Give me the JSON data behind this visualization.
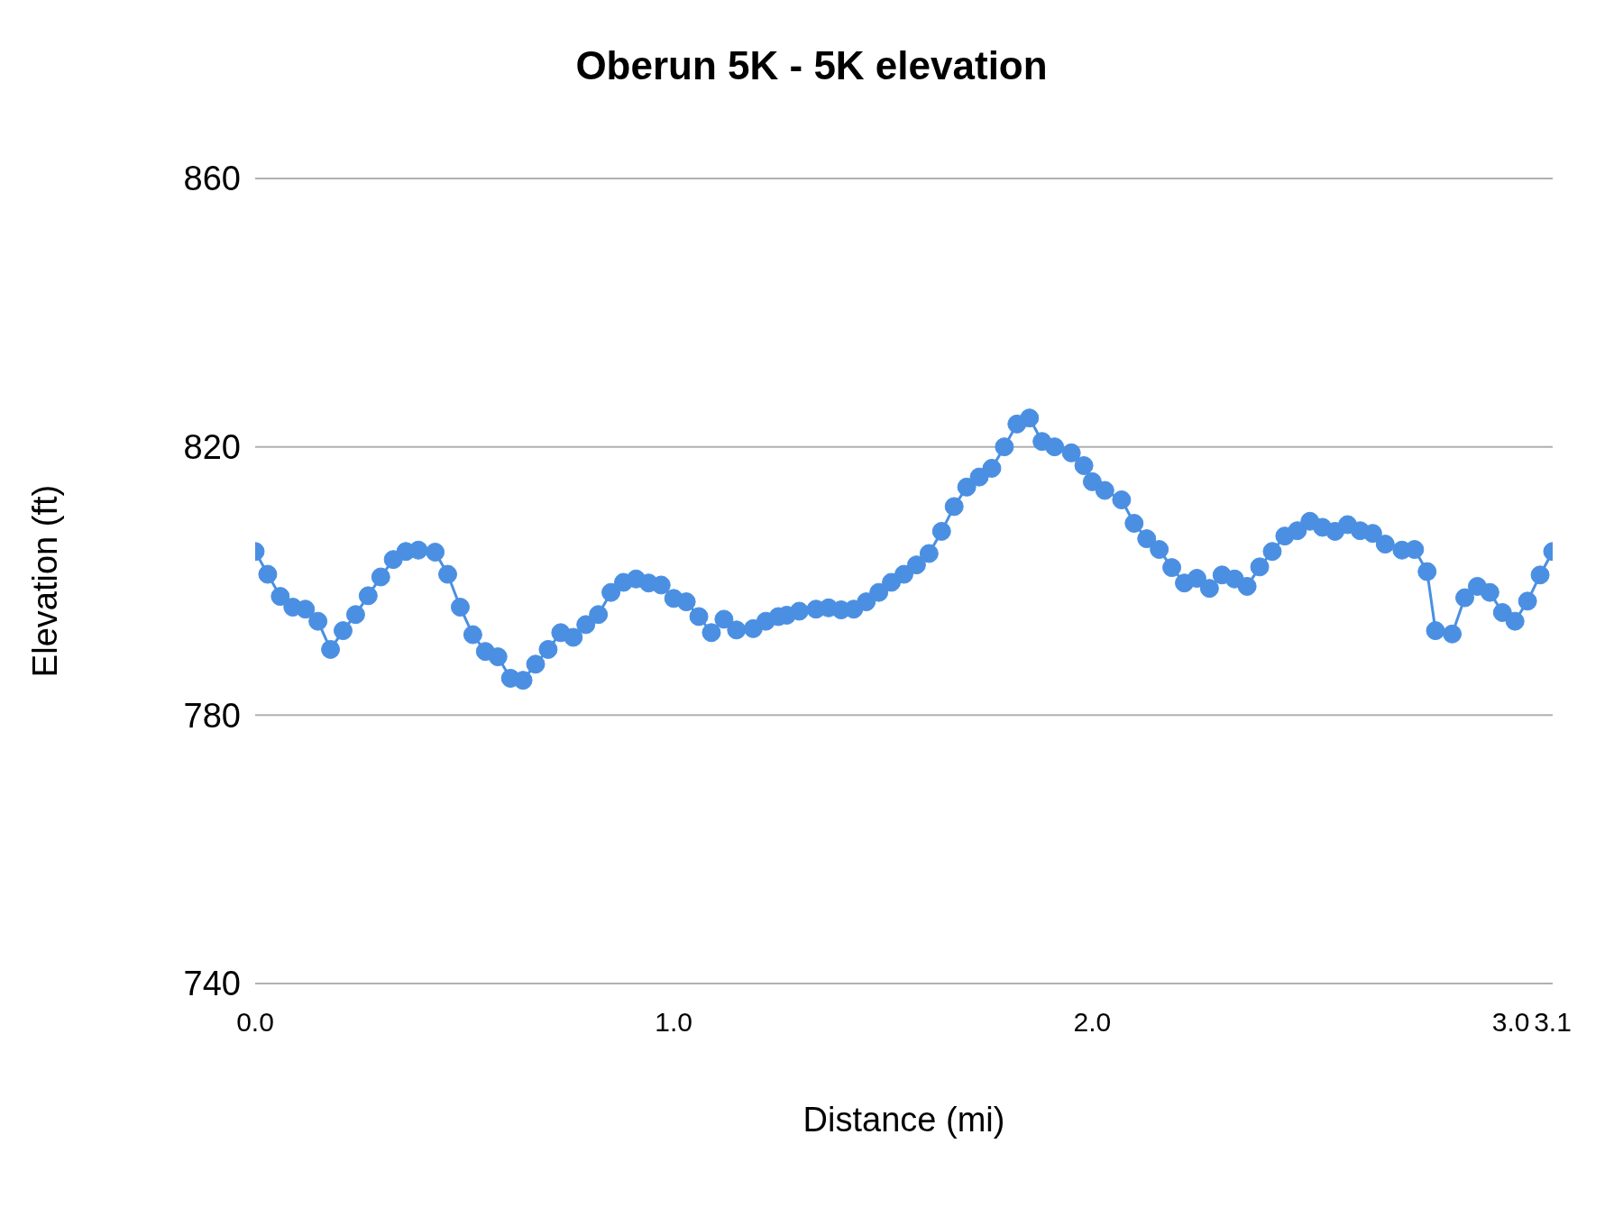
{
  "chart_data": {
    "type": "line",
    "title": "Oberun 5K - 5K elevation",
    "xlabel": "Distance (mi)",
    "ylabel": "Elevation (ft)",
    "x": [
      0.0,
      0.03,
      0.06,
      0.09,
      0.12,
      0.15,
      0.18,
      0.21,
      0.24,
      0.27,
      0.3,
      0.33,
      0.36,
      0.39,
      0.43,
      0.46,
      0.49,
      0.52,
      0.55,
      0.58,
      0.61,
      0.64,
      0.67,
      0.7,
      0.73,
      0.76,
      0.79,
      0.82,
      0.85,
      0.88,
      0.91,
      0.94,
      0.97,
      1.0,
      1.03,
      1.06,
      1.09,
      1.12,
      1.15,
      1.19,
      1.22,
      1.25,
      1.27,
      1.3,
      1.34,
      1.37,
      1.4,
      1.43,
      1.46,
      1.49,
      1.52,
      1.55,
      1.58,
      1.61,
      1.64,
      1.67,
      1.7,
      1.73,
      1.76,
      1.79,
      1.82,
      1.85,
      1.88,
      1.91,
      1.95,
      1.98,
      2.0,
      2.03,
      2.07,
      2.1,
      2.13,
      2.16,
      2.19,
      2.22,
      2.25,
      2.28,
      2.31,
      2.34,
      2.37,
      2.4,
      2.43,
      2.46,
      2.49,
      2.52,
      2.55,
      2.58,
      2.61,
      2.64,
      2.67,
      2.7,
      2.74,
      2.77,
      2.8,
      2.82,
      2.86,
      2.89,
      2.92,
      2.95,
      2.98,
      3.01,
      3.04,
      3.07,
      3.1
    ],
    "series": [
      {
        "color": "#4a8fe2",
        "values": [
          804.4,
          801.0,
          797.7,
          796.1,
          795.8,
          794.0,
          789.8,
          792.6,
          795.0,
          797.8,
          800.6,
          803.2,
          804.4,
          804.6,
          804.3,
          801.0,
          796.1,
          792.0,
          789.5,
          788.7,
          785.5,
          785.2,
          787.6,
          789.8,
          792.3,
          791.6,
          793.5,
          795.0,
          798.3,
          799.8,
          800.3,
          799.7,
          799.4,
          797.4,
          796.9,
          794.7,
          792.3,
          794.3,
          792.7,
          792.9,
          794.0,
          794.7,
          794.9,
          795.5,
          795.8,
          796.0,
          795.7,
          795.8,
          796.9,
          798.3,
          799.8,
          801.0,
          802.4,
          804.1,
          807.4,
          811.1,
          814.0,
          815.5,
          816.8,
          820.0,
          823.4,
          824.3,
          820.8,
          820.0,
          819.1,
          817.2,
          814.8,
          813.5,
          812.1,
          808.6,
          806.3,
          804.7,
          802.0,
          799.7,
          800.4,
          798.9,
          800.9,
          800.3,
          799.2,
          802.1,
          804.4,
          806.7,
          807.5,
          808.9,
          808.0,
          807.4,
          808.4,
          807.5,
          807.1,
          805.5,
          804.6,
          804.7,
          801.4,
          792.6,
          792.1,
          797.5,
          799.2,
          798.3,
          795.3,
          794.0,
          797.0,
          800.9,
          804.4
        ]
      }
    ],
    "xlim": [
      0,
      3.1
    ],
    "xticks": [
      {
        "value": 0,
        "label": "0.0"
      },
      {
        "value": 1,
        "label": "1.0"
      },
      {
        "value": 2,
        "label": "2.0"
      },
      {
        "value": 3,
        "label": "3.0"
      },
      {
        "value": 3.1,
        "label": "3.1"
      }
    ],
    "ylim": [
      740,
      860
    ],
    "yticks": [
      740,
      780,
      820,
      860
    ],
    "grid": "y",
    "marker": "circle",
    "line_style": "solid"
  }
}
